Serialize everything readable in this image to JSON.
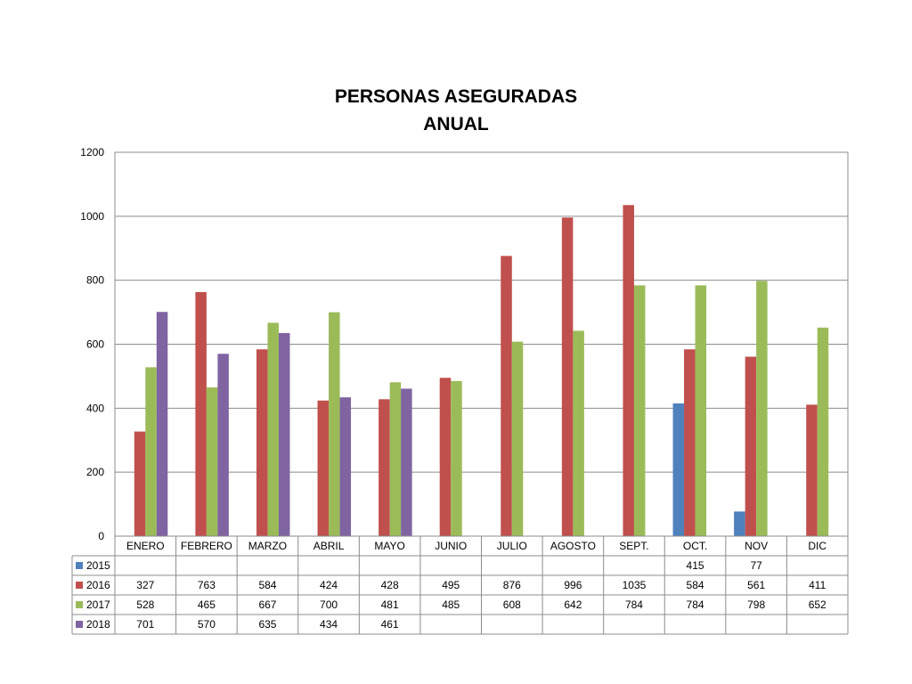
{
  "chart_data": {
    "type": "bar",
    "title": [
      "PERSONAS ASEGURADAS",
      "ANUAL"
    ],
    "categories": [
      "ENERO",
      "FEBRERO",
      "MARZO",
      "ABRIL",
      "MAYO",
      "JUNIO",
      "JULIO",
      "AGOSTO",
      "SEPT.",
      "OCT.",
      "NOV",
      "DIC"
    ],
    "ylim": [
      0,
      1200
    ],
    "yticks": [
      0,
      200,
      400,
      600,
      800,
      1000,
      1200
    ],
    "grid": true,
    "legend": "data-table-left",
    "series": [
      {
        "name": "2015",
        "color": "#4f81bd",
        "values": [
          null,
          null,
          null,
          null,
          null,
          null,
          null,
          null,
          null,
          415,
          77,
          null
        ]
      },
      {
        "name": "2016",
        "color": "#c0504d",
        "values": [
          327,
          763,
          584,
          424,
          428,
          495,
          876,
          996,
          1035,
          584,
          561,
          411
        ]
      },
      {
        "name": "2017",
        "color": "#9bbb59",
        "values": [
          528,
          465,
          667,
          700,
          481,
          485,
          608,
          642,
          784,
          784,
          798,
          652
        ]
      },
      {
        "name": "2018",
        "color": "#8064a2",
        "values": [
          701,
          570,
          635,
          434,
          461,
          null,
          null,
          null,
          null,
          null,
          null,
          null
        ]
      }
    ]
  }
}
